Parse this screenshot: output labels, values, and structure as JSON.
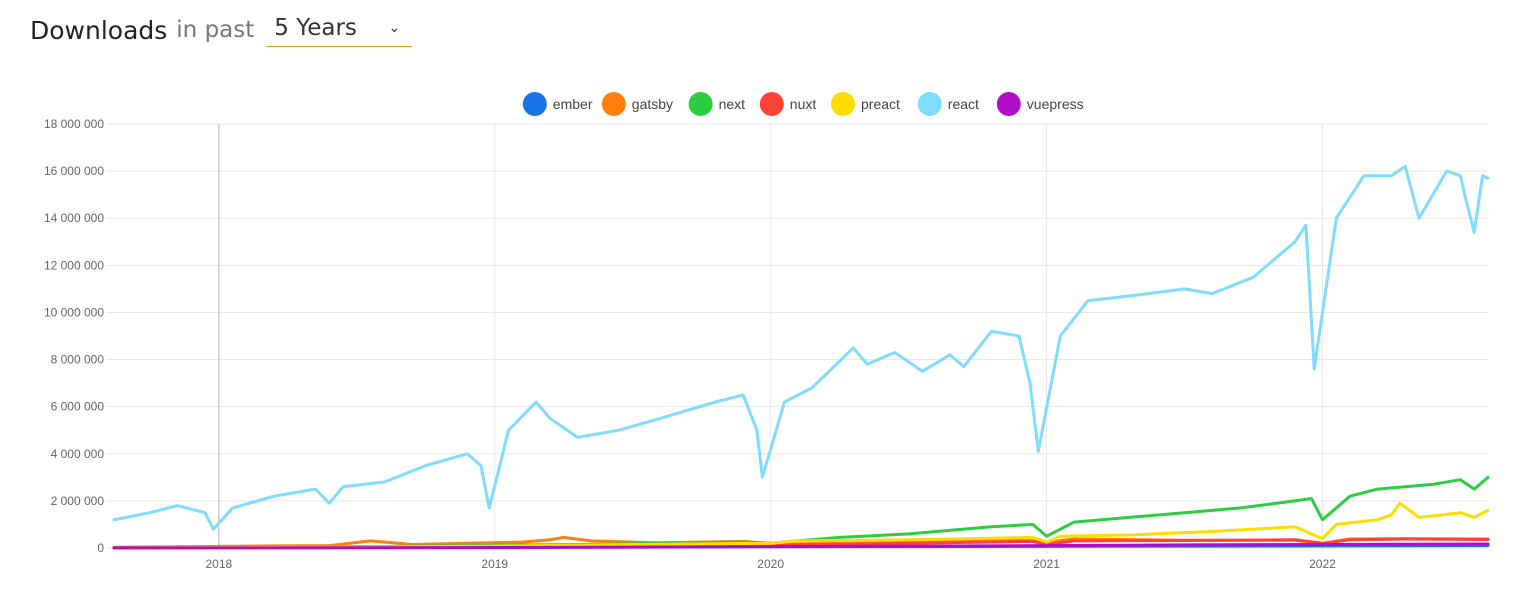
{
  "header": {
    "title": "Downloads",
    "subtitle": "in past",
    "period": "5 Years"
  },
  "chart_data": {
    "type": "line",
    "title": "",
    "xlabel": "",
    "ylabel": "",
    "ylim": [
      0,
      18000000
    ],
    "yticks": [
      0,
      2000000,
      4000000,
      6000000,
      8000000,
      10000000,
      12000000,
      14000000,
      16000000,
      18000000
    ],
    "ytick_labels": [
      "0",
      "2 000 000",
      "4 000 000",
      "6 000 000",
      "8 000 000",
      "10 000 000",
      "12 000 000",
      "14 000 000",
      "16 000 000",
      "18 000 000"
    ],
    "xlim": [
      2017.62,
      2022.6
    ],
    "xticks": [
      2018,
      2019,
      2020,
      2021,
      2022
    ],
    "xtick_labels": [
      "2018",
      "2019",
      "2020",
      "2021",
      "2022"
    ],
    "grid": true,
    "legend_position": "top-center",
    "series": [
      {
        "name": "ember",
        "color": "#1a73e8",
        "x": [
          2017.62,
          2018.5,
          2019.5,
          2020.5,
          2021.5,
          2022.6
        ],
        "values": [
          20000,
          25000,
          40000,
          60000,
          80000,
          100000
        ]
      },
      {
        "name": "gatsby",
        "color": "#ff7f0e",
        "x": [
          2017.62,
          2017.9,
          2018.1,
          2018.4,
          2018.55,
          2018.7,
          2018.9,
          2019.1,
          2019.2,
          2019.25,
          2019.35,
          2019.6,
          2019.9,
          2020.0,
          2020.1,
          2020.5,
          2020.9,
          2021.0,
          2021.1,
          2021.5,
          2021.9,
          2022.0,
          2022.1,
          2022.3,
          2022.6
        ],
        "values": [
          30000,
          60000,
          80000,
          100000,
          300000,
          150000,
          200000,
          250000,
          350000,
          450000,
          300000,
          220000,
          280000,
          200000,
          300000,
          320000,
          350000,
          250000,
          380000,
          330000,
          330000,
          200000,
          380000,
          400000,
          380000
        ]
      },
      {
        "name": "next",
        "color": "#2ecc40",
        "x": [
          2017.62,
          2018.0,
          2018.5,
          2018.9,
          2019.0,
          2019.3,
          2019.6,
          2019.9,
          2020.0,
          2020.1,
          2020.25,
          2020.5,
          2020.8,
          2020.95,
          2021.0,
          2021.1,
          2021.3,
          2021.5,
          2021.7,
          2021.9,
          2021.96,
          2022.0,
          2022.1,
          2022.2,
          2022.3,
          2022.4,
          2022.5,
          2022.55,
          2022.6
        ],
        "values": [
          10000,
          20000,
          50000,
          100000,
          120000,
          150000,
          200000,
          250000,
          200000,
          300000,
          450000,
          600000,
          900000,
          1000000,
          500000,
          1100000,
          1300000,
          1500000,
          1700000,
          2000000,
          2100000,
          1200000,
          2200000,
          2500000,
          2600000,
          2700000,
          2900000,
          2500000,
          3000000
        ]
      },
      {
        "name": "nuxt",
        "color": "#ff4136",
        "x": [
          2017.62,
          2018.0,
          2018.5,
          2019.0,
          2019.5,
          2020.0,
          2020.5,
          2020.95,
          2021.0,
          2021.1,
          2021.5,
          2021.9,
          2022.0,
          2022.1,
          2022.3,
          2022.6
        ],
        "values": [
          10000,
          20000,
          50000,
          80000,
          120000,
          150000,
          200000,
          280000,
          150000,
          300000,
          320000,
          350000,
          200000,
          350000,
          380000,
          360000
        ]
      },
      {
        "name": "preact",
        "color": "#ffdc00",
        "x": [
          2017.62,
          2018.0,
          2018.5,
          2019.0,
          2019.5,
          2020.0,
          2020.1,
          2020.5,
          2020.95,
          2021.0,
          2021.05,
          2021.3,
          2021.6,
          2021.9,
          2022.0,
          2022.05,
          2022.2,
          2022.25,
          2022.28,
          2022.35,
          2022.5,
          2022.55,
          2022.6
        ],
        "values": [
          10000,
          20000,
          40000,
          80000,
          150000,
          200000,
          300000,
          350000,
          450000,
          250000,
          500000,
          550000,
          700000,
          900000,
          400000,
          1000000,
          1200000,
          1400000,
          1900000,
          1300000,
          1500000,
          1300000,
          1600000
        ]
      },
      {
        "name": "react",
        "color": "#7fdbff",
        "x": [
          2017.62,
          2017.75,
          2017.85,
          2017.95,
          2017.98,
          2018.05,
          2018.2,
          2018.35,
          2018.4,
          2018.45,
          2018.6,
          2018.75,
          2018.9,
          2018.95,
          2018.98,
          2019.05,
          2019.15,
          2019.2,
          2019.3,
          2019.45,
          2019.6,
          2019.8,
          2019.9,
          2019.95,
          2019.97,
          2020.05,
          2020.15,
          2020.3,
          2020.35,
          2020.45,
          2020.55,
          2020.65,
          2020.7,
          2020.8,
          2020.9,
          2020.94,
          2020.97,
          2021.05,
          2021.15,
          2021.3,
          2021.5,
          2021.6,
          2021.75,
          2021.9,
          2021.94,
          2021.97,
          2022.05,
          2022.15,
          2022.25,
          2022.3,
          2022.35,
          2022.45,
          2022.5,
          2022.52,
          2022.55,
          2022.58,
          2022.6
        ],
        "values": [
          1200000,
          1500000,
          1800000,
          1500000,
          800000,
          1700000,
          2200000,
          2500000,
          1900000,
          2600000,
          2800000,
          3500000,
          4000000,
          3500000,
          1700000,
          5000000,
          6200000,
          5500000,
          4700000,
          5000000,
          5500000,
          6200000,
          6500000,
          5000000,
          3000000,
          6200000,
          6800000,
          8500000,
          7800000,
          8300000,
          7500000,
          8200000,
          7700000,
          9200000,
          9000000,
          7000000,
          4100000,
          9000000,
          10500000,
          10700000,
          11000000,
          10800000,
          11500000,
          13000000,
          13700000,
          7600000,
          14000000,
          15800000,
          15800000,
          16200000,
          14000000,
          16000000,
          15800000,
          14800000,
          13400000,
          15800000,
          15700000
        ]
      },
      {
        "name": "vuepress",
        "color": "#b10dc9",
        "x": [
          2017.62,
          2018.5,
          2019.0,
          2019.5,
          2020.0,
          2020.5,
          2021.0,
          2021.5,
          2022.0,
          2022.6
        ],
        "values": [
          5000,
          10000,
          20000,
          40000,
          60000,
          80000,
          100000,
          130000,
          150000,
          170000
        ]
      }
    ]
  }
}
